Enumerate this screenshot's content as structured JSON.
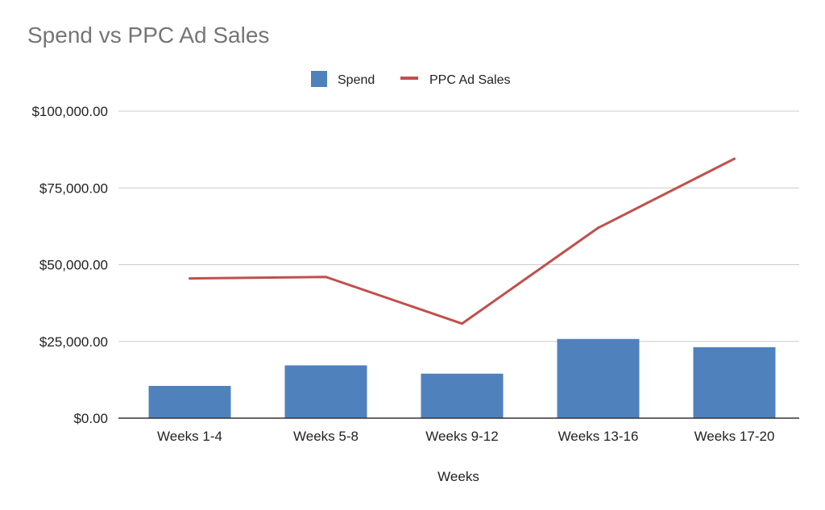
{
  "chart_data": {
    "type": "bar",
    "title": "Spend vs PPC Ad Sales",
    "xlabel": "Weeks",
    "ylabel": "",
    "categories": [
      "Weeks 1-4",
      "Weeks 5-8",
      "Weeks 9-12",
      "Weeks 13-16",
      "Weeks 17-20"
    ],
    "series": [
      {
        "name": "Spend",
        "kind": "bar",
        "color": "#4f81bd",
        "values": [
          10500,
          17200,
          14500,
          25800,
          23100
        ]
      },
      {
        "name": "PPC Ad Sales",
        "kind": "line",
        "color": "#c0504d",
        "values": [
          45500,
          46000,
          30800,
          62000,
          84500
        ]
      }
    ],
    "ylim": [
      0,
      100000
    ],
    "yticks": [
      0,
      25000,
      50000,
      75000,
      100000
    ],
    "ytick_labels": [
      "$0.00",
      "$25,000.00",
      "$50,000.00",
      "$75,000.00",
      "$100,000.00"
    ],
    "legend_position": "top",
    "grid": true,
    "gridline_color": "#cccccc",
    "axis_color": "#333333"
  }
}
